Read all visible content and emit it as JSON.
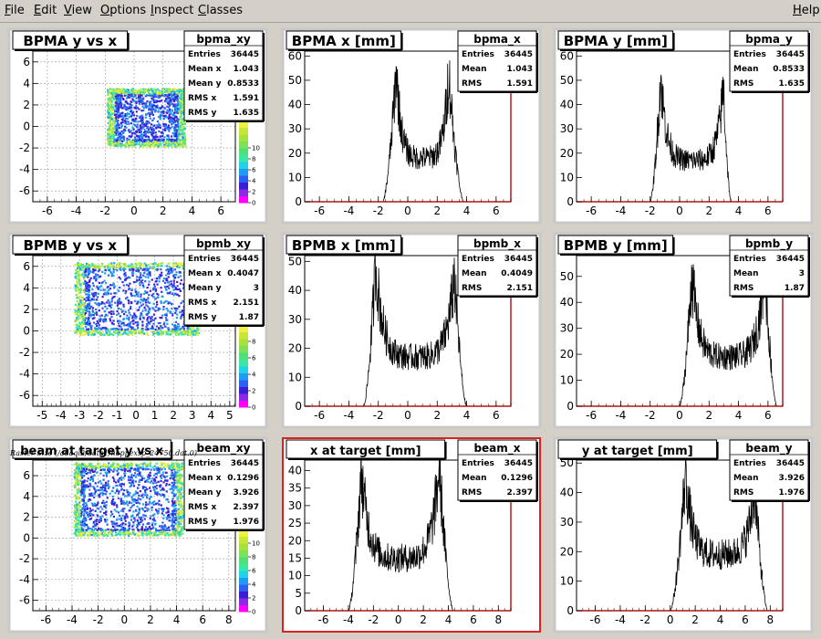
{
  "menu": {
    "items": [
      {
        "label": "File",
        "u": "F",
        "rest": "ile"
      },
      {
        "label": "Edit",
        "u": "E",
        "rest": "dit"
      },
      {
        "label": "View",
        "u": "V",
        "rest": "iew"
      },
      {
        "label": "Options",
        "u": "O",
        "rest": "ptions"
      },
      {
        "label": "Inspect",
        "u": "I",
        "rest": "nspect"
      },
      {
        "label": "Classes",
        "u": "C",
        "rest": "lasses"
      }
    ],
    "help": {
      "label": "Help",
      "u": "H",
      "rest": "elp"
    }
  },
  "caption": "Raster Size (/adaql2/data1/happexsp_24750.dat.0)",
  "colors": {
    "pad_bg": "#ffffff",
    "frame": "#c8c8c8",
    "axis": "#000000",
    "highlight": "#e02020",
    "hist": "#000000"
  },
  "chart_data": [
    {
      "type": "heatmap",
      "title": "BPMA y vs x",
      "name": "bpma_xy",
      "xlim": [
        -7,
        7
      ],
      "ylim": [
        -7,
        7
      ],
      "xticks": [
        -6,
        -4,
        -2,
        0,
        2,
        4,
        6
      ],
      "yticks": [
        -6,
        -4,
        -2,
        0,
        2,
        4,
        6
      ],
      "region": {
        "xmin": -1.9,
        "xmax": 3.5,
        "ymin": -1.8,
        "ymax": 3.6
      },
      "zlim": [
        0,
        15
      ],
      "zticks": [
        0,
        2,
        4,
        6,
        8,
        10
      ],
      "stats": [
        {
          "label": "Entries",
          "value": "36445"
        },
        {
          "label": "Mean x",
          "value": "1.043"
        },
        {
          "label": "Mean y",
          "value": "0.8533"
        },
        {
          "label": "RMS x",
          "value": "1.591"
        },
        {
          "label": "RMS y",
          "value": "1.635"
        }
      ]
    },
    {
      "type": "bar",
      "title": "BPMA x [mm]",
      "name": "bpma_x",
      "xlim": [
        -7,
        7
      ],
      "ylim": [
        0,
        62
      ],
      "xticks": [
        -6,
        -4,
        -2,
        0,
        2,
        4,
        6
      ],
      "yticks": [
        0,
        10,
        20,
        30,
        40,
        50,
        60
      ],
      "profile": {
        "lo": -1.7,
        "hi": 3.8,
        "peak1": -0.8,
        "peak2": 2.8,
        "h1": 52,
        "h2": 52,
        "base": 18
      },
      "stats": [
        {
          "label": "Entries",
          "value": "36445"
        },
        {
          "label": "Mean",
          "value": "1.043"
        },
        {
          "label": "RMS",
          "value": "1.591"
        }
      ]
    },
    {
      "type": "bar",
      "title": "BPMA y [mm]",
      "name": "bpma_y",
      "xlim": [
        -7,
        7
      ],
      "ylim": [
        0,
        62
      ],
      "xticks": [
        -6,
        -4,
        -2,
        0,
        2,
        4,
        6
      ],
      "yticks": [
        0,
        10,
        20,
        30,
        40,
        50,
        60
      ],
      "profile": {
        "lo": -2.0,
        "hi": 3.5,
        "peak1": -1.3,
        "peak2": 3.0,
        "h1": 50,
        "h2": 44,
        "base": 17
      },
      "stats": [
        {
          "label": "Entries",
          "value": "36445"
        },
        {
          "label": "Mean",
          "value": "0.8533"
        },
        {
          "label": "RMS",
          "value": "1.635"
        }
      ]
    },
    {
      "type": "heatmap",
      "title": "BPMB y vs x",
      "name": "bpmb_xy",
      "xlim": [
        -5.5,
        5.3
      ],
      "ylim": [
        -7,
        7
      ],
      "xticks": [
        -5,
        -4,
        -3,
        -2,
        -1,
        0,
        1,
        2,
        3,
        4,
        5
      ],
      "yticks": [
        -6,
        -4,
        -2,
        0,
        2,
        4,
        6
      ],
      "region": {
        "xmin": -3.3,
        "xmax": 3.3,
        "ymin": -0.3,
        "ymax": 6.4
      },
      "zlim": [
        0,
        10
      ],
      "zticks": [
        0,
        2,
        4,
        6,
        8
      ],
      "stats": [
        {
          "label": "Entries",
          "value": "36445"
        },
        {
          "label": "Mean x",
          "value": "0.4047"
        },
        {
          "label": "Mean y",
          "value": "3"
        },
        {
          "label": "RMS x",
          "value": "2.151"
        },
        {
          "label": "RMS y",
          "value": "1.87"
        }
      ]
    },
    {
      "type": "bar",
      "title": "BPMB x [mm]",
      "name": "bpmb_x",
      "xlim": [
        -7,
        7
      ],
      "ylim": [
        0,
        52
      ],
      "xticks": [
        -6,
        -4,
        -2,
        0,
        2,
        4,
        6
      ],
      "yticks": [
        0,
        10,
        20,
        30,
        40,
        50
      ],
      "profile": {
        "lo": -3.0,
        "hi": 4.0,
        "peak1": -2.2,
        "peak2": 3.2,
        "h1": 48,
        "h2": 42,
        "base": 17
      },
      "stats": [
        {
          "label": "Entries",
          "value": "36445"
        },
        {
          "label": "Mean",
          "value": "0.4049"
        },
        {
          "label": "RMS",
          "value": "2.151"
        }
      ]
    },
    {
      "type": "bar",
      "title": "BPMB y [mm]",
      "name": "bpmb_y",
      "xlim": [
        -7,
        7
      ],
      "ylim": [
        0,
        58
      ],
      "xticks": [
        -6,
        -4,
        -2,
        0,
        2,
        4,
        6
      ],
      "yticks": [
        0,
        10,
        20,
        30,
        40,
        50
      ],
      "profile": {
        "lo": 0.0,
        "hi": 6.6,
        "peak1": 0.8,
        "peak2": 5.8,
        "h1": 48,
        "h2": 52,
        "base": 19
      },
      "stats": [
        {
          "label": "Entries",
          "value": "36445"
        },
        {
          "label": "Mean",
          "value": "3"
        },
        {
          "label": "RMS",
          "value": "1.87"
        }
      ]
    },
    {
      "type": "heatmap",
      "title": "beam at target y vs x",
      "name": "beam_xy",
      "xlim": [
        -7,
        8.5
      ],
      "ylim": [
        -7,
        7.5
      ],
      "xticks": [
        -6,
        -4,
        -2,
        0,
        2,
        4,
        6,
        8
      ],
      "yticks": [
        -6,
        -4,
        -2,
        0,
        2,
        4,
        6
      ],
      "region": {
        "xmin": -3.9,
        "xmax": 4.4,
        "ymin": 0.3,
        "ymax": 7.3
      },
      "zlim": [
        0,
        12
      ],
      "zticks": [
        0,
        2,
        4,
        6,
        8,
        10
      ],
      "stats": [
        {
          "label": "Entries",
          "value": "36445"
        },
        {
          "label": "Mean x",
          "value": "0.1296"
        },
        {
          "label": "Mean y",
          "value": "3.926"
        },
        {
          "label": "RMS x",
          "value": "2.397"
        },
        {
          "label": "RMS y",
          "value": "1.976"
        }
      ]
    },
    {
      "type": "bar",
      "title": "x at target [mm]",
      "name": "beam_x",
      "highlight": true,
      "xlim": [
        -7.5,
        9
      ],
      "ylim": [
        0,
        43
      ],
      "xticks": [
        -6,
        -4,
        -2,
        0,
        2,
        4,
        6,
        8
      ],
      "yticks": [
        0,
        5,
        10,
        15,
        20,
        25,
        30,
        35,
        40
      ],
      "profile": {
        "lo": -4.0,
        "hi": 4.4,
        "peak1": -3.0,
        "peak2": 3.3,
        "h1": 38,
        "h2": 40,
        "base": 15
      },
      "stats": [
        {
          "label": "Entries",
          "value": "36445"
        },
        {
          "label": "Mean",
          "value": "0.1296"
        },
        {
          "label": "RMS",
          "value": "2.397"
        }
      ]
    },
    {
      "type": "bar",
      "title": "y at target [mm]",
      "name": "beam_y",
      "xlim": [
        -7.5,
        9
      ],
      "ylim": [
        0,
        51
      ],
      "xticks": [
        -6,
        -4,
        -2,
        0,
        2,
        4,
        6,
        8
      ],
      "yticks": [
        0,
        10,
        20,
        30,
        40,
        50
      ],
      "profile": {
        "lo": 0.0,
        "hi": 7.8,
        "peak1": 1.2,
        "peak2": 6.8,
        "h1": 46,
        "h2": 40,
        "base": 19
      },
      "stats": [
        {
          "label": "Entries",
          "value": "36445"
        },
        {
          "label": "Mean",
          "value": "3.926"
        },
        {
          "label": "RMS",
          "value": "1.976"
        }
      ]
    }
  ]
}
